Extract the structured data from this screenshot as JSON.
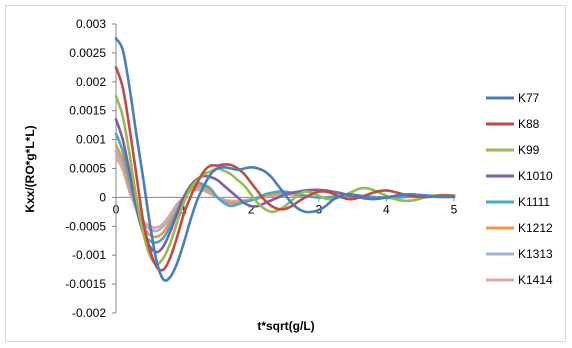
{
  "chart_data": {
    "type": "line",
    "title": "",
    "xlabel": "t*sqrt(g/L)",
    "ylabel": "Kxx/(RO*g*L*L)",
    "xlim": [
      0,
      5
    ],
    "ylim": [
      -0.002,
      0.003
    ],
    "x_ticks": [
      "0",
      "1",
      "2",
      "3",
      "4",
      "5"
    ],
    "y_ticks": [
      "0.003",
      "0.0025",
      "0.002",
      "0.0015",
      "0.001",
      "0.0005",
      "0",
      "-0.0005",
      "-0.001",
      "-0.0015",
      "-0.002"
    ],
    "legend_position": "right",
    "grid": false,
    "x": [
      0,
      0.1,
      0.2,
      0.3,
      0.4,
      0.5,
      0.6,
      0.7,
      0.8,
      0.9,
      1.0,
      1.1,
      1.2,
      1.3,
      1.4,
      1.5,
      1.6,
      1.7,
      1.8,
      1.9,
      2.0,
      2.1,
      2.2,
      2.3,
      2.4,
      2.5,
      2.6,
      2.7,
      2.8,
      2.9,
      3.0,
      3.1,
      3.2,
      3.3,
      3.4,
      3.5,
      3.6,
      3.7,
      3.8,
      3.9,
      4.0,
      4.1,
      4.2,
      4.3,
      4.4,
      4.5,
      4.6,
      4.7,
      4.8,
      4.9,
      5.0
    ],
    "series": [
      {
        "name": "K77",
        "color": "#4a7ebb",
        "values": [
          0.00275,
          0.00255,
          0.0019,
          0.0011,
          0.00035,
          -0.00045,
          -0.0011,
          -0.00142,
          -0.00138,
          -0.00115,
          -0.0008,
          -0.0004,
          -5e-05,
          0.0002,
          0.0004,
          0.0005,
          0.00052,
          0.0005,
          0.00048,
          0.0005,
          0.00052,
          0.0005,
          0.00045,
          0.00035,
          0.0002,
          5e-05,
          -0.0001,
          -0.0002,
          -0.00025,
          -0.00025,
          -0.00022,
          -0.00015,
          -5e-05,
          2e-05,
          5e-05,
          5e-05,
          3e-05,
          0.0,
          -2e-05,
          -1e-05,
          0.0,
          2e-05,
          4e-05,
          5e-05,
          5e-05,
          4e-05,
          3e-05,
          2e-05,
          2e-05,
          2e-05,
          2e-05
        ]
      },
      {
        "name": "K88",
        "color": "#be4b48",
        "values": [
          0.00225,
          0.0019,
          0.0012,
          0.0004,
          -0.0004,
          -0.0009,
          -0.0012,
          -0.00125,
          -0.00105,
          -0.0007,
          -0.0003,
          0.0,
          0.00025,
          0.00045,
          0.00055,
          0.00055,
          0.00057,
          0.00056,
          0.0005,
          0.0004,
          0.00025,
          0.0001,
          -5e-05,
          -0.00015,
          -0.0002,
          -0.0002,
          -0.00015,
          -7e-05,
          0.0,
          6e-05,
          0.0001,
          0.0001,
          7e-05,
          2e-05,
          -2e-05,
          -3e-05,
          0.0,
          4e-05,
          8e-05,
          0.00011,
          0.00012,
          0.0001,
          7e-05,
          4e-05,
          2e-05,
          1e-05,
          1e-05,
          2e-05,
          3e-05,
          3e-05,
          3e-05
        ]
      },
      {
        "name": "K99",
        "color": "#98b954",
        "values": [
          0.00175,
          0.0014,
          0.00075,
          0.0,
          -0.0006,
          -0.001,
          -0.00115,
          -0.00105,
          -0.0008,
          -0.00045,
          -0.0001,
          0.00015,
          0.0003,
          0.0004,
          0.00045,
          0.0005,
          0.00046,
          0.0004,
          0.0003,
          0.0002,
          5e-05,
          -0.0001,
          -0.0002,
          -0.00025,
          -0.00022,
          -0.00015,
          -5e-05,
          5e-05,
          0.0001,
          8e-05,
          3e-05,
          -2e-05,
          -3e-05,
          0.0,
          5e-05,
          0.0001,
          0.00015,
          0.00016,
          0.00013,
          8e-05,
          3e-05,
          -2e-05,
          -5e-05,
          -6e-05,
          -5e-05,
          -2e-05,
          1e-05,
          3e-05,
          4e-05,
          4e-05,
          3e-05
        ]
      },
      {
        "name": "K1010",
        "color": "#7d60a0",
        "values": [
          0.00135,
          0.001,
          0.00045,
          -0.00015,
          -0.0006,
          -0.00085,
          -0.00095,
          -0.00085,
          -0.0006,
          -0.0003,
          0.0,
          0.0002,
          0.00032,
          0.00037,
          0.00035,
          0.0003,
          0.0002,
          0.0001,
          0.0,
          -0.0001,
          -0.00015,
          -0.00015,
          -0.0001,
          -5e-05,
          0.0,
          5e-05,
          8e-05,
          0.0001,
          0.00012,
          0.00013,
          0.00013,
          0.00012,
          0.0001,
          8e-05,
          5e-05,
          2e-05,
          0.0,
          -2e-05,
          -3e-05,
          -2e-05,
          0.0,
          2e-05,
          4e-05,
          5e-05,
          5e-05,
          4e-05,
          3e-05,
          2e-05,
          1e-05,
          1e-05,
          1e-05
        ]
      },
      {
        "name": "K1111",
        "color": "#46aac5",
        "values": [
          0.0011,
          0.0008,
          0.0003,
          -0.0002,
          -0.0006,
          -0.00075,
          -0.00078,
          -0.0007,
          -0.0005,
          -0.00025,
          0.0,
          0.00018,
          0.00025,
          0.00022,
          0.00015,
          0.0,
          -0.0001,
          -0.00015,
          -0.00012,
          -8e-05,
          -5e-05,
          0.0,
          5e-05,
          8e-05,
          0.0001,
          0.0001,
          8e-05,
          5e-05,
          3e-05,
          1e-05,
          0.0,
          0.0,
          1e-05,
          2e-05,
          3e-05,
          3e-05,
          3e-05,
          2e-05,
          1e-05,
          0.0,
          -1e-05,
          -1e-05,
          0.0,
          1e-05,
          2e-05,
          3e-05,
          3e-05,
          2e-05,
          2e-05,
          1e-05,
          1e-05
        ]
      },
      {
        "name": "K1212",
        "color": "#f69240",
        "values": [
          0.0009,
          0.00065,
          0.0002,
          -0.0002,
          -0.0005,
          -0.00065,
          -0.00068,
          -0.0006,
          -0.00042,
          -0.0002,
          0.0,
          0.00015,
          0.0002,
          0.00018,
          0.0001,
          0.0,
          -8e-05,
          -0.0001,
          -0.0001,
          -8e-05,
          -5e-05,
          -2e-05,
          2e-05,
          5e-05,
          7e-05,
          8e-05,
          7e-05,
          5e-05,
          3e-05,
          1e-05,
          0.0,
          0.0,
          1e-05,
          2e-05,
          2e-05,
          2e-05,
          2e-05,
          1e-05,
          0.0,
          0.0,
          0.0,
          1e-05,
          1e-05,
          2e-05,
          2e-05,
          2e-05,
          1e-05,
          1e-05,
          1e-05,
          1e-05,
          1e-05
        ]
      },
      {
        "name": "K1313",
        "color": "#9fb4d8",
        "values": [
          0.0008,
          0.00055,
          0.00015,
          -0.0002,
          -0.00045,
          -0.00055,
          -0.00058,
          -0.0005,
          -0.00035,
          -0.00015,
          0.0,
          0.00012,
          0.00016,
          0.00014,
          8e-05,
          0.0,
          -5e-05,
          -8e-05,
          -8e-05,
          -6e-05,
          -4e-05,
          -1e-05,
          2e-05,
          4e-05,
          5e-05,
          6e-05,
          5e-05,
          4e-05,
          2e-05,
          1e-05,
          0.0,
          0.0,
          1e-05,
          1e-05,
          2e-05,
          2e-05,
          1e-05,
          1e-05,
          0.0,
          0.0,
          0.0,
          1e-05,
          1e-05,
          1e-05,
          1e-05,
          1e-05,
          1e-05,
          1e-05,
          1e-05,
          1e-05,
          1e-05
        ]
      },
      {
        "name": "K1414",
        "color": "#e4a4a3",
        "values": [
          0.0007,
          0.00048,
          0.0001,
          -0.00018,
          -0.0004,
          -0.0005,
          -0.00052,
          -0.00045,
          -0.0003,
          -0.00012,
          0.0,
          0.0001,
          0.00013,
          0.00011,
          6e-05,
          0.0,
          -4e-05,
          -6e-05,
          -6e-05,
          -5e-05,
          -3e-05,
          -1e-05,
          1e-05,
          3e-05,
          4e-05,
          5e-05,
          4e-05,
          3e-05,
          2e-05,
          1e-05,
          0.0,
          0.0,
          1e-05,
          1e-05,
          1e-05,
          1e-05,
          1e-05,
          1e-05,
          0.0,
          0.0,
          0.0,
          1e-05,
          1e-05,
          1e-05,
          1e-05,
          1e-05,
          1e-05,
          1e-05,
          1e-05,
          1e-05,
          1e-05
        ]
      }
    ]
  }
}
